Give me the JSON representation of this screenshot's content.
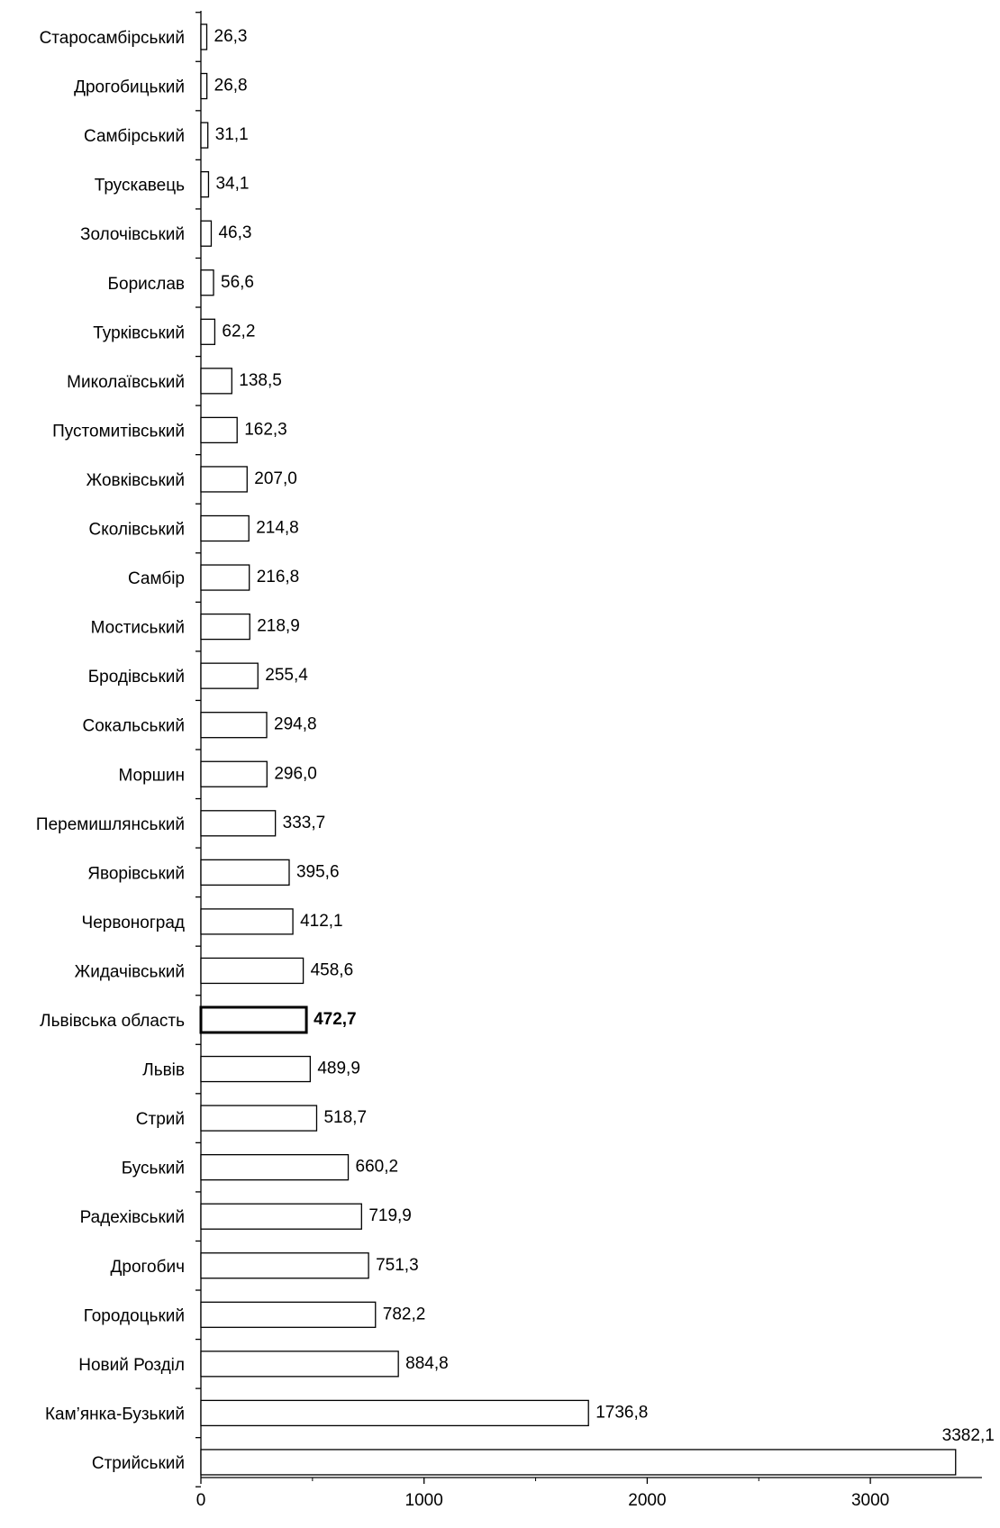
{
  "chart_data": {
    "type": "bar",
    "orientation": "horizontal",
    "title": "",
    "xlabel": "",
    "ylabel": "",
    "xlim": [
      0,
      3500
    ],
    "xticks": [
      0,
      1000,
      2000,
      3000
    ],
    "grid": false,
    "legend": "none",
    "bar_fill": "#ffffff",
    "bar_stroke": "#000000",
    "highlighted_category": "Львівська область",
    "categories": [
      "Старосамбірський",
      "Дрогобицький",
      "Самбірський",
      "Трускавець",
      "Золочівський",
      "Борислав",
      "Турківський",
      "Миколаївський",
      "Пустомитівський",
      "Жовківський",
      "Сколівський",
      "Самбір",
      "Мостиський",
      "Бродівський",
      "Сокальський",
      "Моршин",
      "Перемишлянський",
      "Яворівський",
      "Червоноград",
      "Жидачівський",
      "Львівська область",
      "Львів",
      "Стрий",
      "Буський",
      "Радехівський",
      "Дрогобич",
      "Городоцький",
      "Новий Розділ",
      "Кам’янка-Бузький",
      "Стрийський"
    ],
    "values": [
      26.3,
      26.8,
      31.1,
      34.1,
      46.3,
      56.6,
      62.2,
      138.5,
      162.3,
      207.0,
      214.8,
      216.8,
      218.9,
      255.4,
      294.8,
      296.0,
      333.7,
      395.6,
      412.1,
      458.6,
      472.7,
      489.9,
      518.7,
      660.2,
      719.9,
      751.3,
      782.2,
      884.8,
      1736.8,
      3382.1
    ],
    "value_labels": [
      "26,3",
      "26,8",
      "31,1",
      "34,1",
      "46,3",
      "56,6",
      "62,2",
      "138,5",
      "162,3",
      "207,0",
      "214,8",
      "216,8",
      "218,9",
      "255,4",
      "294,8",
      "296,0",
      "333,7",
      "395,6",
      "412,1",
      "458,6",
      "472,7",
      "489,9",
      "518,7",
      "660,2",
      "719,9",
      "751,3",
      "782,2",
      "884,8",
      "1736,8",
      "3382,1"
    ]
  }
}
